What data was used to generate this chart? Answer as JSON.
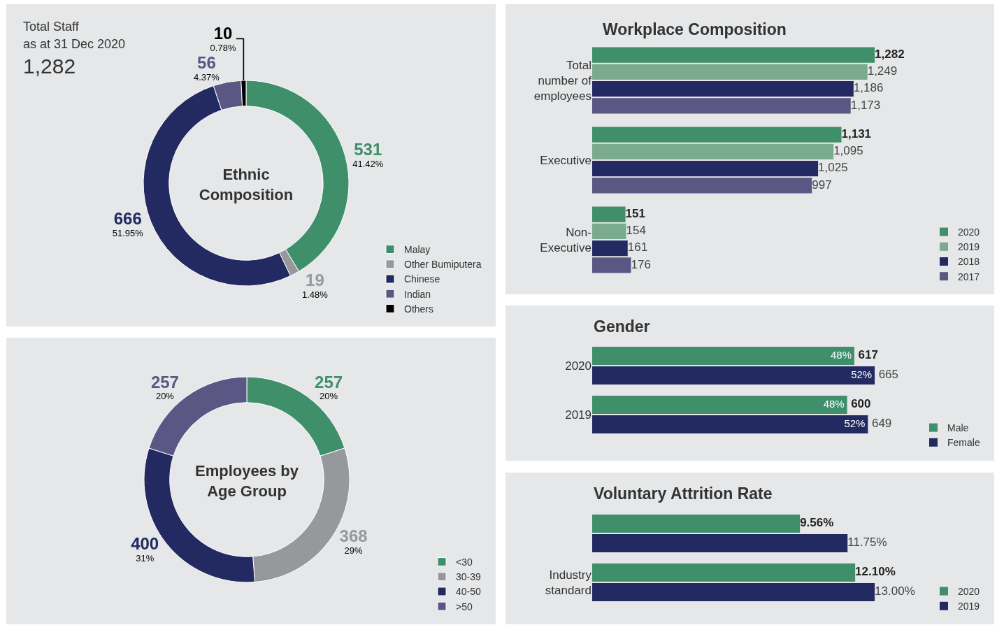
{
  "chart_data": [
    {
      "type": "donut",
      "title": "Ethnic Composition",
      "annotations": [
        "Total Staff",
        "as at 31 Dec 2020",
        "1,282"
      ],
      "categories": [
        "Malay",
        "Other Bumiputera",
        "Chinese",
        "Indian",
        "Others"
      ],
      "values": [
        531,
        19,
        666,
        56,
        10
      ],
      "value_labels": [
        "531\n41.42%",
        "19\n1.48%",
        "666\n51.95%",
        "56\n4.37%",
        "10\n0.78%"
      ],
      "colors": [
        "#3f8f6b",
        "#97989b",
        "#232a62",
        "#5b5785",
        "#000000"
      ],
      "legend": "bottom right"
    },
    {
      "type": "donut",
      "title": "Employees by Age Group",
      "categories": [
        "<30",
        "30-39",
        "40-50",
        ">50"
      ],
      "values": [
        257,
        368,
        400,
        257
      ],
      "value_labels": [
        "257\n20%",
        "368\n29%",
        "400\n31%",
        "257\n20%"
      ],
      "colors": [
        "#3f8f6b",
        "#97989b",
        "#232a62",
        "#5b5785"
      ],
      "legend": "bottom right"
    },
    {
      "type": "bar",
      "orientation": "horizontal",
      "title": "Workplace Composition",
      "categories": [
        "Total number of employees",
        "Executive",
        "Non-Executive"
      ],
      "series": [
        {
          "name": "2020",
          "color": "#3f8f6b",
          "values": [
            1282,
            1131,
            151
          ],
          "value_labels": [
            "1,282",
            "1,131",
            "151"
          ]
        },
        {
          "name": "2019",
          "color": "#7aab8f",
          "values": [
            1249,
            1095,
            154
          ],
          "value_labels": [
            "1,249",
            "1,095",
            "154"
          ]
        },
        {
          "name": "2018",
          "color": "#232a62",
          "values": [
            1186,
            1025,
            161
          ],
          "value_labels": [
            "1,186",
            "1,025",
            "161"
          ]
        },
        {
          "name": "2017",
          "color": "#5b5785",
          "values": [
            1173,
            997,
            176
          ],
          "value_labels": [
            "1,173",
            "997",
            "176"
          ]
        }
      ],
      "legend": "bottom right"
    },
    {
      "type": "bar",
      "orientation": "horizontal",
      "title": "Gender",
      "categories": [
        "2020",
        "2019"
      ],
      "series": [
        {
          "name": "Male",
          "color": "#3f8f6b",
          "values": [
            617,
            600
          ],
          "value_labels": [
            "48%\n617",
            "48%\n600"
          ]
        },
        {
          "name": "Female",
          "color": "#232a62",
          "values": [
            665,
            649
          ],
          "value_labels": [
            "52%\n665",
            "52%\n649"
          ]
        }
      ],
      "legend": "bottom right"
    },
    {
      "type": "bar",
      "orientation": "horizontal",
      "title": "Voluntary Attrition Rate",
      "categories": [
        null,
        "Industry standard"
      ],
      "series": [
        {
          "name": "2020",
          "color": "#3f8f6b",
          "values": [
            9.56,
            12.1
          ],
          "value_labels": [
            "9.56%",
            "12.10%"
          ]
        },
        {
          "name": "2019",
          "color": "#232a62",
          "values": [
            11.75,
            13.0
          ],
          "value_labels": [
            "11.75%",
            "13.00%"
          ]
        }
      ],
      "legend": "bottom right"
    }
  ]
}
